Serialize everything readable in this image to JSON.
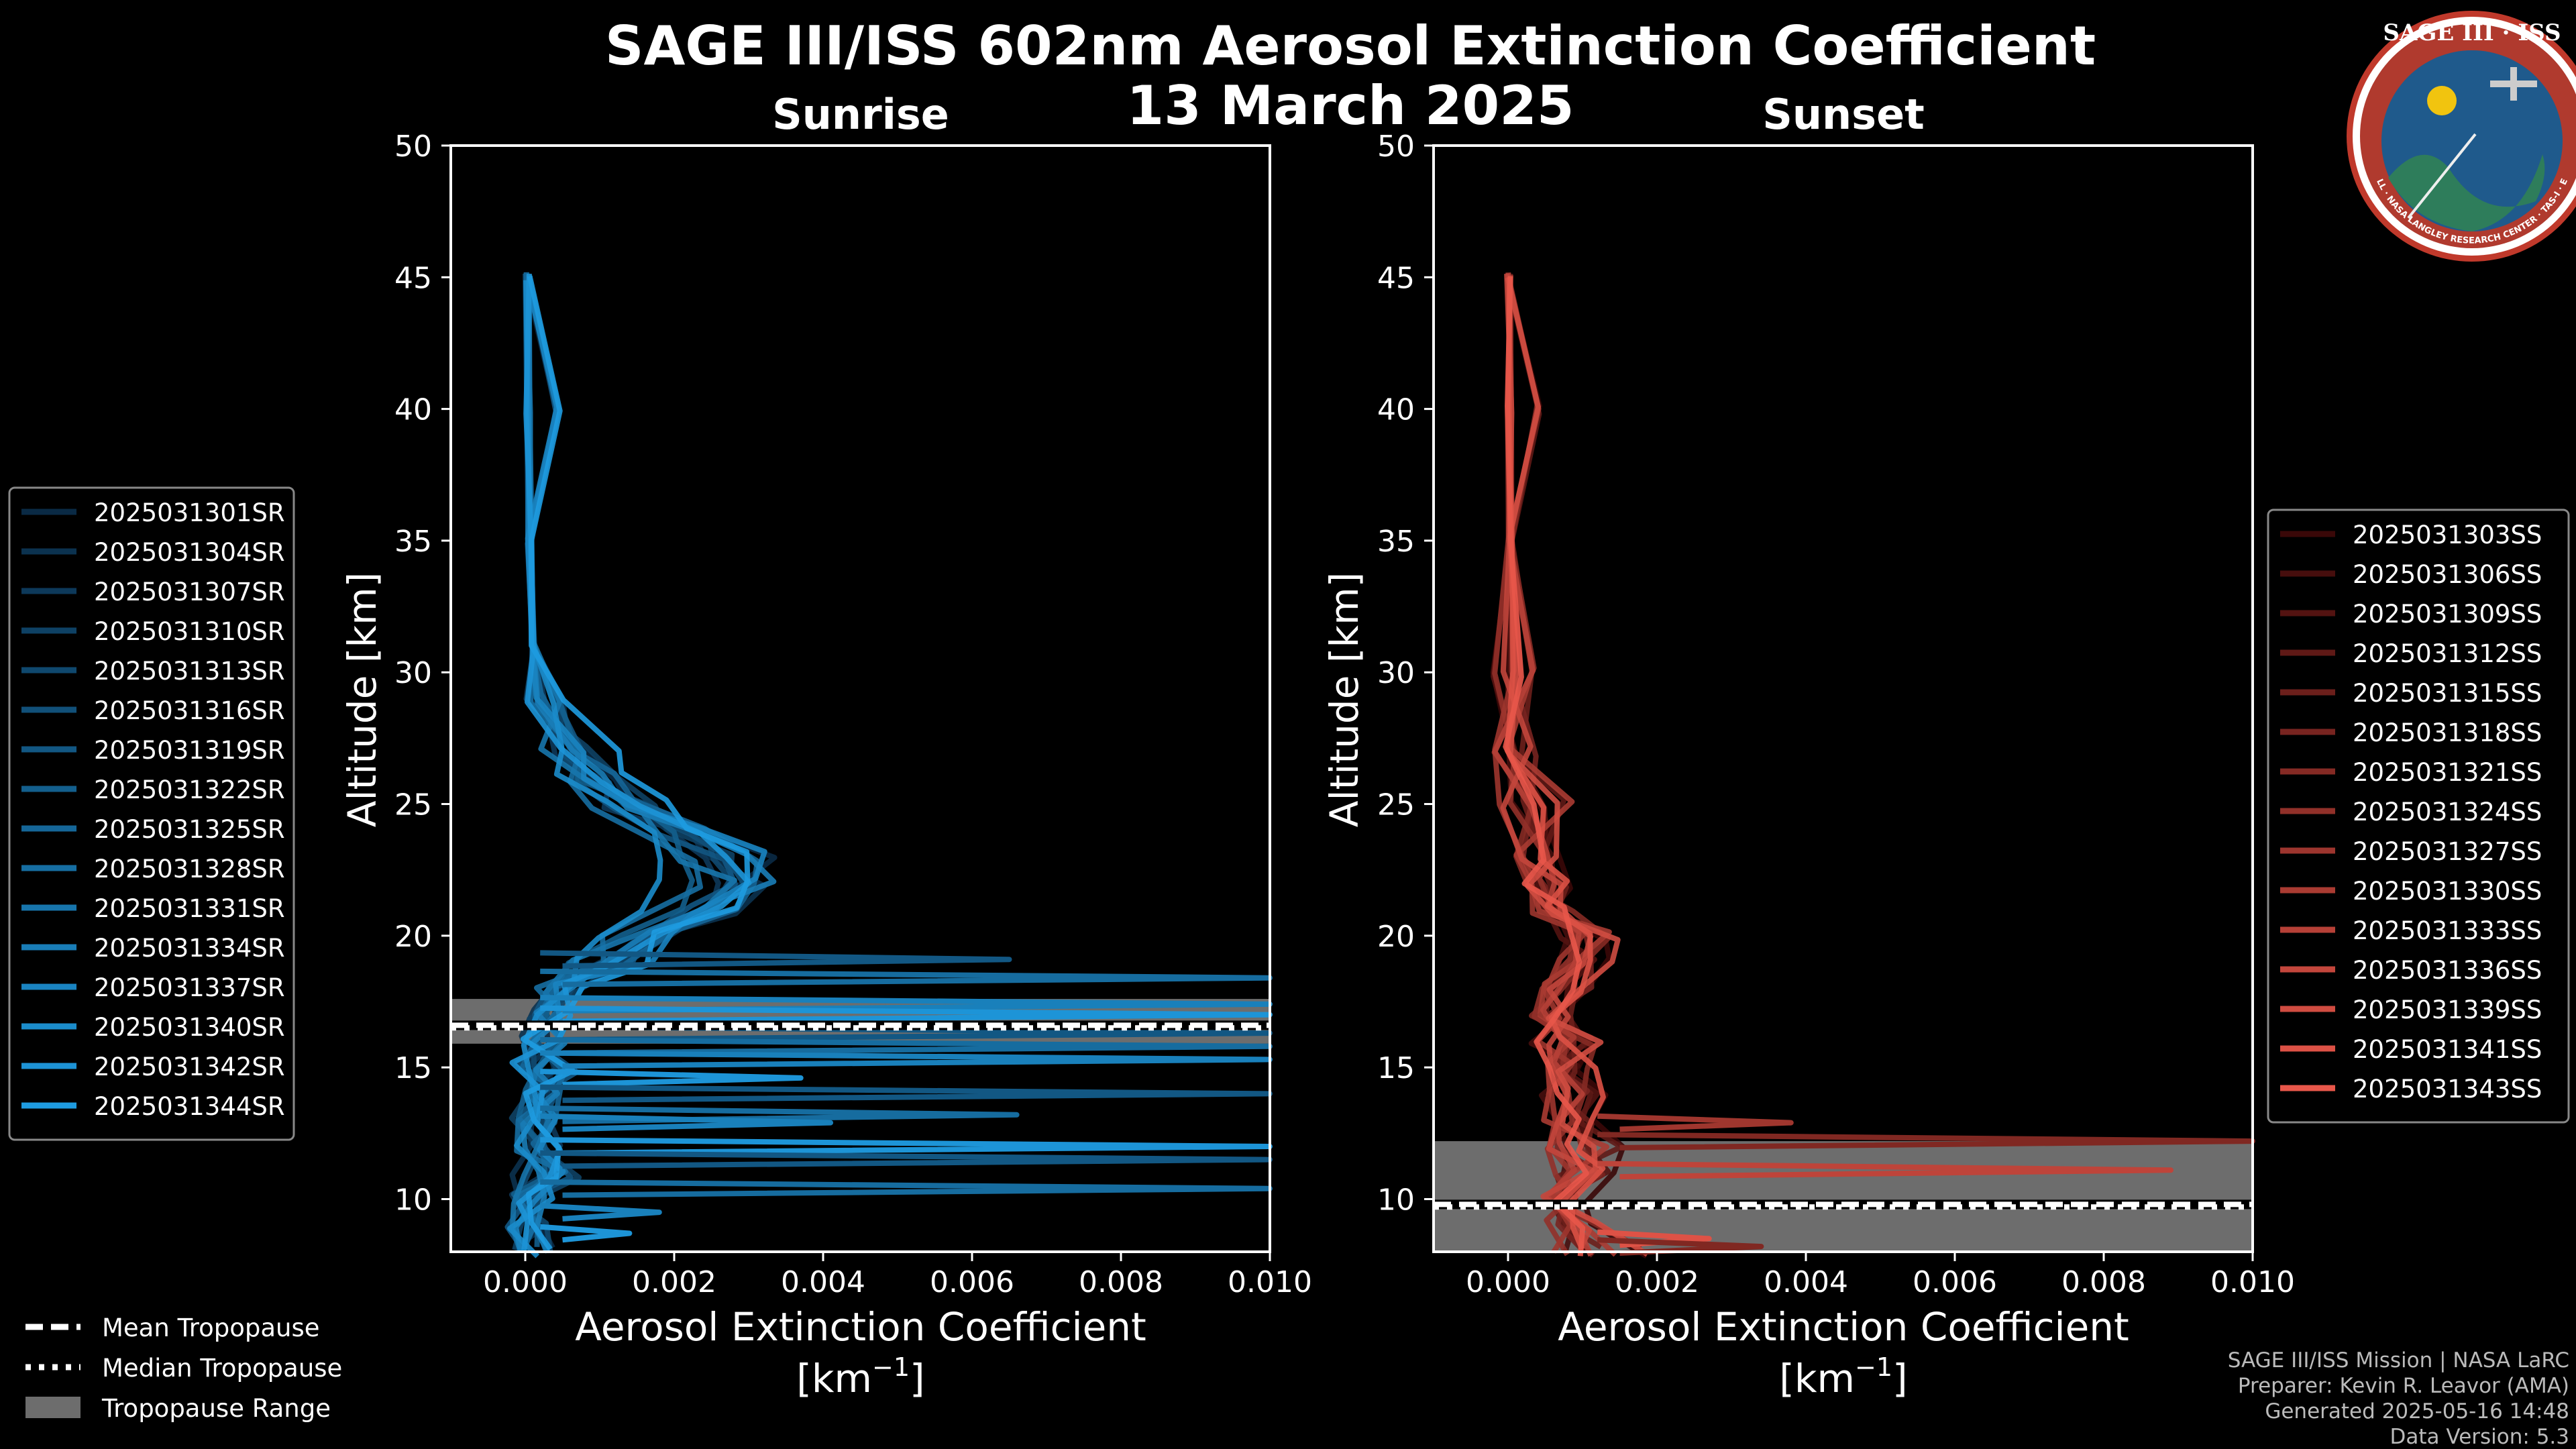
{
  "title_line1": "SAGE III/ISS 602nm Aerosol Extinction Coefficient",
  "title_line2": "13 March 2025",
  "logo": {
    "text": "SAGE III · ISS",
    "ring": "BALL · NASA LANGLEY RESEARCH CENTER · TAS-I · ESA"
  },
  "colors": {
    "sunrise": "#1e90d0",
    "sunset": "#e8574a",
    "tropo_fill": "#808080"
  },
  "chart_data": [
    {
      "type": "line",
      "title": "Sunrise",
      "xlabel_line1": "Aerosol Extinction Coefficient",
      "xlabel_unit": "[km",
      "xlabel_sup": "−1",
      "xlabel_close": "]",
      "ylabel": "Altitude [km]",
      "xlim": [
        -0.001,
        0.01
      ],
      "ylim": [
        8,
        50
      ],
      "xticks": [
        "0.000",
        "0.002",
        "0.004",
        "0.006",
        "0.008",
        "0.010"
      ],
      "yticks": [
        "10",
        "15",
        "20",
        "25",
        "30",
        "35",
        "40",
        "45",
        "50"
      ],
      "tropopause": {
        "mean": 16.6,
        "median": 16.5,
        "range": [
          15.9,
          17.6
        ]
      },
      "legend_loc": "left",
      "legend": [
        "2025031301SR",
        "2025031304SR",
        "2025031307SR",
        "2025031310SR",
        "2025031313SR",
        "2025031316SR",
        "2025031319SR",
        "2025031322SR",
        "2025031325SR",
        "2025031328SR",
        "2025031331SR",
        "2025031334SR",
        "2025031337SR",
        "2025031340SR",
        "2025031342SR",
        "2025031344SR"
      ],
      "base_profile": [
        [
          45,
          3e-05
        ],
        [
          40,
          4e-05
        ],
        [
          35,
          6e-05
        ],
        [
          31,
          0.0001
        ],
        [
          29,
          0.0002
        ],
        [
          27,
          0.0005
        ],
        [
          26,
          0.0009
        ],
        [
          25,
          0.0013
        ],
        [
          24,
          0.0019
        ],
        [
          23,
          0.0023
        ],
        [
          22,
          0.0026
        ],
        [
          21,
          0.0022
        ],
        [
          20,
          0.0015
        ],
        [
          19,
          0.0009
        ],
        [
          18,
          0.0005
        ],
        [
          17,
          0.0003
        ],
        [
          16,
          0.0002
        ],
        [
          15,
          0.0001
        ],
        [
          14,
          0.0002
        ],
        [
          13,
          0.0001
        ],
        [
          12,
          0.0002
        ],
        [
          11,
          0.0001
        ],
        [
          10,
          0.0001
        ],
        [
          9,
          5e-05
        ],
        [
          8,
          0.0001
        ]
      ],
      "spikes": [
        [
          19.1,
          0.0065
        ],
        [
          18.4,
          0.01
        ],
        [
          17.4,
          0.01
        ],
        [
          17.0,
          0.01
        ],
        [
          16.3,
          0.01
        ],
        [
          15.8,
          0.01
        ],
        [
          15.3,
          0.01
        ],
        [
          14.6,
          0.0037
        ],
        [
          14.0,
          0.01
        ],
        [
          13.2,
          0.0066
        ],
        [
          12.9,
          0.0041
        ],
        [
          12.0,
          0.01
        ],
        [
          11.5,
          0.01
        ],
        [
          10.4,
          0.01
        ],
        [
          9.5,
          0.0018
        ],
        [
          8.7,
          0.0014
        ]
      ]
    },
    {
      "type": "line",
      "title": "Sunset",
      "xlabel_line1": "Aerosol Extinction Coefficient",
      "xlabel_unit": "[km",
      "xlabel_sup": "−1",
      "xlabel_close": "]",
      "ylabel": "Altitude [km]",
      "xlim": [
        -0.001,
        0.01
      ],
      "ylim": [
        8,
        50
      ],
      "xticks": [
        "0.000",
        "0.002",
        "0.004",
        "0.006",
        "0.008",
        "0.010"
      ],
      "yticks": [
        "10",
        "15",
        "20",
        "25",
        "30",
        "35",
        "40",
        "45",
        "50"
      ],
      "tropopause": {
        "mean": 9.8,
        "median": 9.7,
        "range": [
          8.0,
          12.2
        ]
      },
      "legend_loc": "right",
      "legend": [
        "2025031303SS",
        "2025031306SS",
        "2025031309SS",
        "2025031312SS",
        "2025031315SS",
        "2025031318SS",
        "2025031321SS",
        "2025031324SS",
        "2025031327SS",
        "2025031330SS",
        "2025031333SS",
        "2025031336SS",
        "2025031339SS",
        "2025031341SS",
        "2025031343SS"
      ],
      "base_profile": [
        [
          45,
          1e-05
        ],
        [
          40,
          2e-05
        ],
        [
          35,
          3e-05
        ],
        [
          30,
          5e-05
        ],
        [
          27,
          0.0001
        ],
        [
          25,
          0.0002
        ],
        [
          23,
          0.0004
        ],
        [
          22,
          0.0005
        ],
        [
          21,
          0.0007
        ],
        [
          20,
          0.0009
        ],
        [
          19,
          0.001
        ],
        [
          18,
          0.0008
        ],
        [
          17,
          0.0006
        ],
        [
          16,
          0.0007
        ],
        [
          15,
          0.0008
        ],
        [
          14,
          0.0009
        ],
        [
          13,
          0.0008
        ],
        [
          12,
          0.0009
        ],
        [
          11,
          0.001
        ],
        [
          10,
          0.0008
        ],
        [
          9,
          0.0009
        ],
        [
          8,
          0.0011
        ]
      ],
      "spikes": [
        [
          12.2,
          0.01
        ],
        [
          12.9,
          0.0038
        ],
        [
          11.1,
          0.0089
        ],
        [
          8.5,
          0.0027
        ],
        [
          8.2,
          0.0034
        ]
      ]
    }
  ],
  "legend_common": {
    "mean": "Mean Tropopause",
    "median": "Median Tropopause",
    "range": "Tropopause Range"
  },
  "footer": [
    "SAGE III/ISS Mission | NASA LaRC",
    "Preparer: Kevin R. Leavor (AMA)",
    "Generated 2025-05-16 14:48",
    "Data Version: 5.3"
  ]
}
